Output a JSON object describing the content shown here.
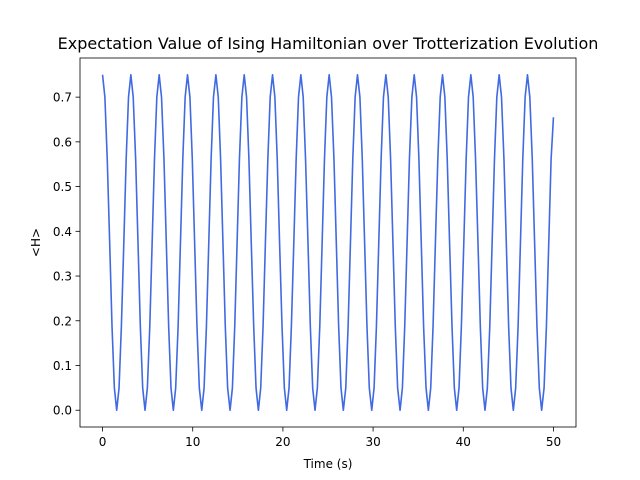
{
  "chart_data": {
    "type": "line",
    "title": "Expectation Value of Ising Hamiltonian over Trotterization Evolution",
    "xlabel": "Time (s)",
    "ylabel": "<H>",
    "xlim": [
      -2.5,
      52.5
    ],
    "ylim": [
      -0.0375,
      0.7875
    ],
    "xticks": [
      0,
      10,
      20,
      30,
      40,
      50
    ],
    "xtick_labels": [
      "0",
      "10",
      "20",
      "30",
      "40",
      "50"
    ],
    "yticks": [
      0.0,
      0.1,
      0.2,
      0.3,
      0.4,
      0.5,
      0.6,
      0.7
    ],
    "ytick_labels": [
      "0.0",
      "0.1",
      "0.2",
      "0.3",
      "0.4",
      "0.5",
      "0.6",
      "0.7"
    ],
    "grid": false,
    "legend": "none",
    "series": [
      {
        "color": "#4169e1",
        "x": [
          0.0,
          0.26,
          0.52,
          0.79,
          1.05,
          1.31,
          1.57,
          1.83,
          2.09,
          2.36,
          2.62,
          2.88,
          3.14,
          3.4,
          3.67,
          3.93,
          4.19,
          4.45,
          4.71,
          4.97,
          5.24,
          5.5,
          5.76,
          6.02,
          6.28,
          6.54,
          6.81,
          7.07,
          7.33,
          7.59,
          7.85,
          8.11,
          8.38,
          8.64,
          8.9,
          9.16,
          9.42,
          9.69,
          9.95,
          10.21,
          10.47,
          10.73,
          11.0,
          11.26,
          11.52,
          11.78,
          12.04,
          12.3,
          12.57,
          12.83,
          13.09,
          13.35,
          13.61,
          13.87,
          14.14,
          14.4,
          14.66,
          14.92,
          15.18,
          15.45,
          15.71,
          15.97,
          16.23,
          16.49,
          16.76,
          17.02,
          17.28,
          17.54,
          17.8,
          18.06,
          18.33,
          18.59,
          18.85,
          19.11,
          19.37,
          19.63,
          19.9,
          20.16,
          20.42,
          20.68,
          20.94,
          21.21,
          21.47,
          21.73,
          21.99,
          22.25,
          22.51,
          22.78,
          23.04,
          23.3,
          23.56,
          23.82,
          24.09,
          24.35,
          24.61,
          24.87,
          25.13,
          25.39,
          25.66,
          25.92,
          26.18,
          26.44,
          26.7,
          26.97,
          27.23,
          27.49,
          27.75,
          28.01,
          28.27,
          28.54,
          28.8,
          29.06,
          29.32,
          29.58,
          29.85,
          30.11,
          30.37,
          30.63,
          30.89,
          31.15,
          31.42,
          31.68,
          31.94,
          32.2,
          32.46,
          32.72,
          32.99,
          33.25,
          33.51,
          33.77,
          34.03,
          34.3,
          34.56,
          34.82,
          35.08,
          35.34,
          35.6,
          35.87,
          36.13,
          36.39,
          36.65,
          36.91,
          37.18,
          37.44,
          37.7,
          37.96,
          38.22,
          38.48,
          38.75,
          39.01,
          39.27,
          39.53,
          39.79,
          40.06,
          40.32,
          40.58,
          40.84,
          41.1,
          41.36,
          41.63,
          41.89,
          42.15,
          42.41,
          42.67,
          42.94,
          43.2,
          43.46,
          43.72,
          43.98,
          44.24,
          44.51,
          44.77,
          45.03,
          45.29,
          45.55,
          45.81,
          46.08,
          46.34,
          46.6,
          46.86,
          47.12,
          47.38,
          47.65,
          47.91,
          48.17,
          48.43,
          48.69,
          48.96,
          49.22,
          49.48,
          49.74,
          50.0
        ],
        "y": [
          0.75,
          0.7,
          0.562,
          0.375,
          0.188,
          0.05,
          0.0,
          0.05,
          0.188,
          0.375,
          0.562,
          0.7,
          0.75,
          0.7,
          0.562,
          0.375,
          0.188,
          0.05,
          0.0,
          0.05,
          0.188,
          0.375,
          0.562,
          0.7,
          0.75,
          0.7,
          0.562,
          0.375,
          0.188,
          0.05,
          0.0,
          0.05,
          0.188,
          0.375,
          0.562,
          0.7,
          0.75,
          0.7,
          0.562,
          0.375,
          0.188,
          0.05,
          0.0,
          0.05,
          0.188,
          0.375,
          0.562,
          0.7,
          0.75,
          0.7,
          0.562,
          0.375,
          0.188,
          0.05,
          0.0,
          0.05,
          0.188,
          0.375,
          0.562,
          0.7,
          0.75,
          0.7,
          0.562,
          0.375,
          0.188,
          0.05,
          0.0,
          0.05,
          0.188,
          0.375,
          0.562,
          0.7,
          0.75,
          0.7,
          0.562,
          0.375,
          0.188,
          0.05,
          0.0,
          0.05,
          0.188,
          0.375,
          0.562,
          0.7,
          0.75,
          0.7,
          0.562,
          0.375,
          0.188,
          0.05,
          0.0,
          0.05,
          0.188,
          0.375,
          0.562,
          0.7,
          0.75,
          0.7,
          0.562,
          0.375,
          0.188,
          0.05,
          0.0,
          0.05,
          0.188,
          0.375,
          0.562,
          0.7,
          0.75,
          0.7,
          0.562,
          0.375,
          0.188,
          0.05,
          0.0,
          0.05,
          0.188,
          0.375,
          0.562,
          0.7,
          0.75,
          0.7,
          0.562,
          0.375,
          0.188,
          0.05,
          0.0,
          0.05,
          0.188,
          0.375,
          0.562,
          0.7,
          0.75,
          0.7,
          0.562,
          0.375,
          0.188,
          0.05,
          0.0,
          0.05,
          0.188,
          0.375,
          0.562,
          0.7,
          0.75,
          0.7,
          0.562,
          0.375,
          0.188,
          0.05,
          0.0,
          0.05,
          0.188,
          0.375,
          0.562,
          0.7,
          0.75,
          0.7,
          0.562,
          0.375,
          0.188,
          0.05,
          0.0,
          0.05,
          0.188,
          0.375,
          0.562,
          0.7,
          0.75,
          0.7,
          0.562,
          0.375,
          0.188,
          0.05,
          0.0,
          0.05,
          0.188,
          0.375,
          0.562,
          0.7,
          0.75,
          0.7,
          0.562,
          0.375,
          0.188,
          0.05,
          0.0,
          0.05,
          0.188,
          0.375,
          0.562,
          0.655
        ]
      }
    ]
  }
}
